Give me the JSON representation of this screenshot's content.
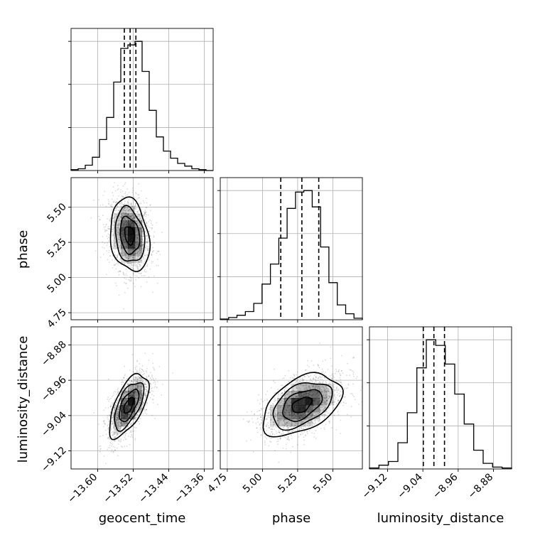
{
  "chart_data": {
    "type": "corner",
    "parameters": [
      "geocent_time",
      "phase",
      "luminosity_distance"
    ],
    "grid": true,
    "panels": {
      "geocent_time": {
        "type": "histogram",
        "range": [
          -13.66,
          -13.34
        ],
        "ticks": [
          -13.6,
          -13.52,
          -13.44,
          -13.36
        ],
        "tick_labels": [
          "−13.60",
          "−13.52",
          "−13.44",
          "−13.36"
        ],
        "bin_heights": [
          1,
          2,
          6,
          15,
          35,
          60,
          100,
          138,
          142,
          146,
          112,
          68,
          38,
          22,
          14,
          8,
          5,
          2,
          1,
          0
        ],
        "quantiles": [
          -13.54,
          -13.527,
          -13.514
        ]
      },
      "phase": {
        "type": "histogram",
        "range": [
          4.7,
          5.71
        ],
        "ticks": [
          4.75,
          5.0,
          5.25,
          5.5
        ],
        "tick_labels": [
          "4.75",
          "5.00",
          "5.25",
          "5.50"
        ],
        "bin_heights": [
          1,
          3,
          6,
          11,
          22,
          48,
          75,
          110,
          150,
          172,
          174,
          152,
          98,
          50,
          20,
          8,
          2
        ],
        "quantiles": [
          5.13,
          5.28,
          5.4
        ]
      },
      "luminosity_distance": {
        "type": "histogram",
        "range": [
          -9.161,
          -8.839
        ],
        "ticks": [
          -9.12,
          -9.04,
          -8.96,
          -8.88
        ],
        "tick_labels": [
          "−9.12",
          "−9.04",
          "−8.96",
          "−8.88"
        ],
        "bin_heights": [
          1,
          4,
          8,
          28,
          60,
          108,
          138,
          132,
          112,
          80,
          48,
          20,
          6,
          2,
          1
        ],
        "quantiles": [
          -9.039,
          -9.015,
          -8.991
        ]
      }
    },
    "joint": [
      {
        "x": "geocent_time",
        "y": "phase",
        "mean": [
          -13.528,
          5.3
        ],
        "sd": [
          0.022,
          0.13
        ],
        "rho": -0.2
      },
      {
        "x": "geocent_time",
        "y": "luminosity_distance",
        "mean": [
          -13.53,
          -9.017
        ],
        "sd": [
          0.022,
          0.036
        ],
        "rho": 0.62
      },
      {
        "x": "phase",
        "y": "luminosity_distance",
        "mean": [
          5.28,
          -9.016
        ],
        "sd": [
          0.14,
          0.035
        ],
        "rho": 0.45
      }
    ]
  }
}
